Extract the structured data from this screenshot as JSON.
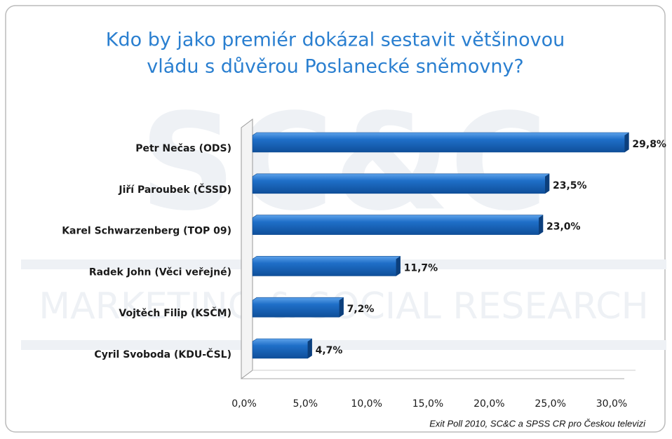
{
  "chart_data": {
    "type": "bar",
    "orientation": "horizontal",
    "title": [
      "Kdo by jako premiér dokázal sestavit většinovou",
      "vládu s důvěrou Poslanecké sněmovny?"
    ],
    "watermark": [
      "SC&C",
      "MARKETING & SOCIAL RESEARCH"
    ],
    "categories": [
      "Petr Nečas (ODS)",
      "Jiří Paroubek (ČSSD)",
      "Karel Schwarzenberg (TOP 09)",
      "Radek John (Věci veřejné)",
      "Vojtěch Filip (KSČM)",
      "Cyril Svoboda (KDU-ČSL)"
    ],
    "values": [
      29.8,
      23.5,
      23.0,
      11.7,
      7.2,
      4.7
    ],
    "value_labels": [
      "29,8%",
      "23,5%",
      "23,0%",
      "11,7%",
      "7,2%",
      "4,7%"
    ],
    "color": "#1f6fc8",
    "xlim": [
      0,
      30
    ],
    "xticks": [
      {
        "value": 0,
        "label": "0,0%"
      },
      {
        "value": 5,
        "label": "5,0%"
      },
      {
        "value": 10,
        "label": "10,0%"
      },
      {
        "value": 15,
        "label": "15,0%"
      },
      {
        "value": 20,
        "label": "20,0%"
      },
      {
        "value": 25,
        "label": "25,0%"
      },
      {
        "value": 30,
        "label": "30,0%"
      }
    ],
    "grid": false,
    "source": "Exit Poll 2010, SC&C a SPSS CR pro Českou televizi"
  }
}
